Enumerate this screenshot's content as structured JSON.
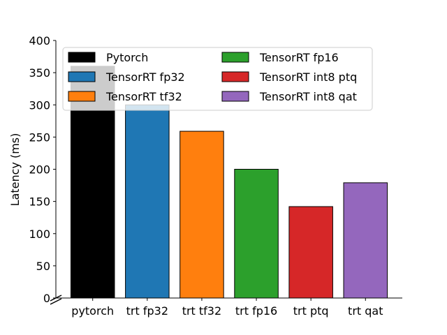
{
  "chart_data": {
    "type": "bar",
    "title": "",
    "xlabel": "",
    "ylabel": "Latency (ms)",
    "ylim": [
      0,
      400
    ],
    "yticks": [
      0,
      50,
      100,
      150,
      200,
      250,
      300,
      350,
      400
    ],
    "categories": [
      "pytorch",
      "trt fp32",
      "trt tf32",
      "trt fp16",
      "trt ptq",
      "trt qat"
    ],
    "values": [
      360,
      300,
      259,
      200,
      142,
      179
    ],
    "colors": [
      "#000000",
      "#1f77b4",
      "#ff7f0e",
      "#2ca02c",
      "#d62728",
      "#9467bd"
    ],
    "legend": {
      "placement": "top",
      "columns": 2,
      "entries": [
        "Pytorch",
        "TensorRT fp32",
        "TensorRT tf32",
        "TensorRT fp16",
        "TensorRT int8 ptq",
        "TensorRT int8 qat"
      ]
    },
    "axis_break": true,
    "grid": false
  }
}
